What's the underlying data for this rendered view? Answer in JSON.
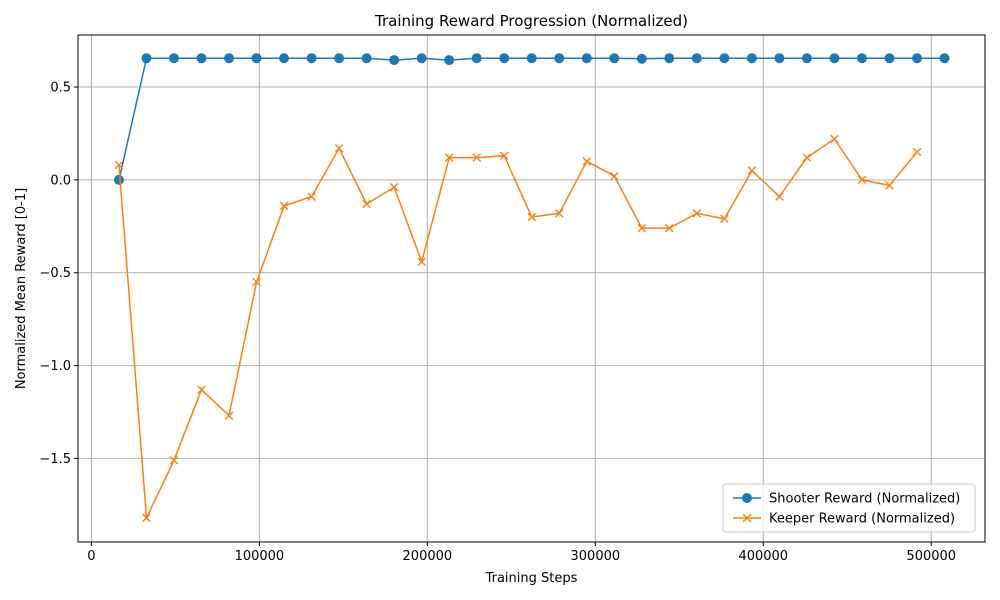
{
  "chart_data": {
    "type": "line",
    "title": "Training Reward Progression (Normalized)",
    "xlabel": "Training Steps",
    "ylabel": "Normalized Mean Reward [0-1]",
    "xlim": [
      -8000,
      532000
    ],
    "ylim": [
      -1.95,
      0.78
    ],
    "x_ticks": [
      0,
      100000,
      200000,
      300000,
      400000,
      500000
    ],
    "x_tick_labels": [
      "0",
      "100000",
      "200000",
      "300000",
      "400000",
      "500000"
    ],
    "y_ticks": [
      -1.5,
      -1.0,
      -0.5,
      0.0,
      0.5
    ],
    "y_tick_labels": [
      "−1.5",
      "−1.0",
      "−0.5",
      "0.0",
      "0.5"
    ],
    "grid": true,
    "legend_position": "lower-right",
    "series": [
      {
        "name": "Shooter Reward (Normalized)",
        "color": "#1f77b4",
        "marker": "circle",
        "x": [
          16384,
          32768,
          49152,
          65536,
          81920,
          98304,
          114688,
          131072,
          147456,
          163840,
          180224,
          196608,
          212992,
          229376,
          245760,
          262144,
          278528,
          294912,
          311296,
          327680,
          344064,
          360448,
          376832,
          393216,
          409600,
          425984,
          442368,
          458752,
          475136,
          491520,
          507904
        ],
        "y": [
          0.0,
          0.655,
          0.655,
          0.655,
          0.655,
          0.655,
          0.655,
          0.655,
          0.655,
          0.655,
          0.645,
          0.655,
          0.645,
          0.655,
          0.655,
          0.655,
          0.655,
          0.655,
          0.655,
          0.652,
          0.655,
          0.655,
          0.655,
          0.655,
          0.655,
          0.655,
          0.655,
          0.655,
          0.655,
          0.655,
          0.655
        ]
      },
      {
        "name": "Keeper Reward (Normalized)",
        "color": "#ff7f0e",
        "marker": "x",
        "x": [
          16384,
          32768,
          49152,
          65536,
          81920,
          98304,
          114688,
          131072,
          147456,
          163840,
          180224,
          196608,
          212992,
          229376,
          245760,
          262144,
          278528,
          294912,
          311296,
          327680,
          344064,
          360448,
          376832,
          393216,
          409600,
          425984,
          442368,
          458752,
          475136,
          491520
        ],
        "y": [
          0.08,
          -1.82,
          -1.51,
          -1.13,
          -1.27,
          -0.55,
          -0.14,
          -0.09,
          0.17,
          -0.13,
          -0.04,
          -0.44,
          0.12,
          0.12,
          0.13,
          -0.2,
          -0.18,
          0.1,
          0.02,
          -0.26,
          -0.26,
          -0.18,
          -0.21,
          0.05,
          -0.09,
          0.12,
          0.22,
          0.0,
          -0.03,
          0.15
        ]
      }
    ]
  }
}
